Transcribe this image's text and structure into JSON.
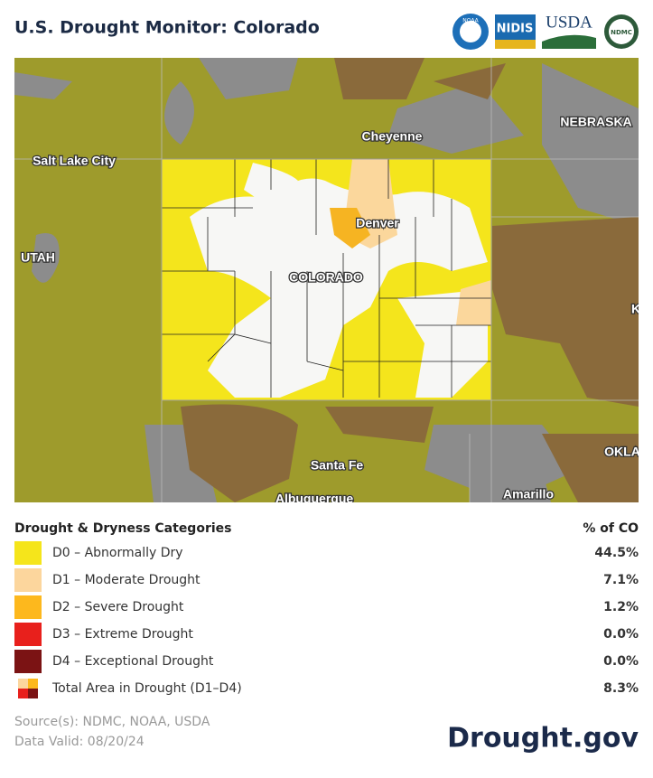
{
  "header": {
    "title": "U.S. Drought Monitor: Colorado",
    "logos": [
      "NOAA",
      "NIDIS",
      "USDA",
      "NDMC"
    ]
  },
  "map": {
    "labels": [
      "Cheyenne",
      "NEBRASKA",
      "Salt Lake City",
      "UTAH",
      "Denver",
      "COLORADO",
      "K",
      "Santa Fe",
      "OKLA",
      "Albuquerque",
      "Amarillo"
    ]
  },
  "legend": {
    "title": "Drought & Dryness Categories",
    "value_header": "% of CO",
    "rows": [
      [
        "D0 – Abnormally Dry",
        "44.5%"
      ],
      [
        "D1 – Moderate Drought",
        "7.1%"
      ],
      [
        "D2 – Severe Drought",
        "1.2%"
      ],
      [
        "D3 – Extreme Drought",
        "0.0%"
      ],
      [
        "D4 – Exceptional Drought",
        "0.0%"
      ],
      [
        "Total Area in Drought (D1–D4)",
        "8.3%"
      ]
    ]
  },
  "footer": {
    "source": "Source(s): NDMC, NOAA, USDA",
    "valid": "Data Valid: 08/20/24",
    "brand": "Drought.gov"
  }
}
